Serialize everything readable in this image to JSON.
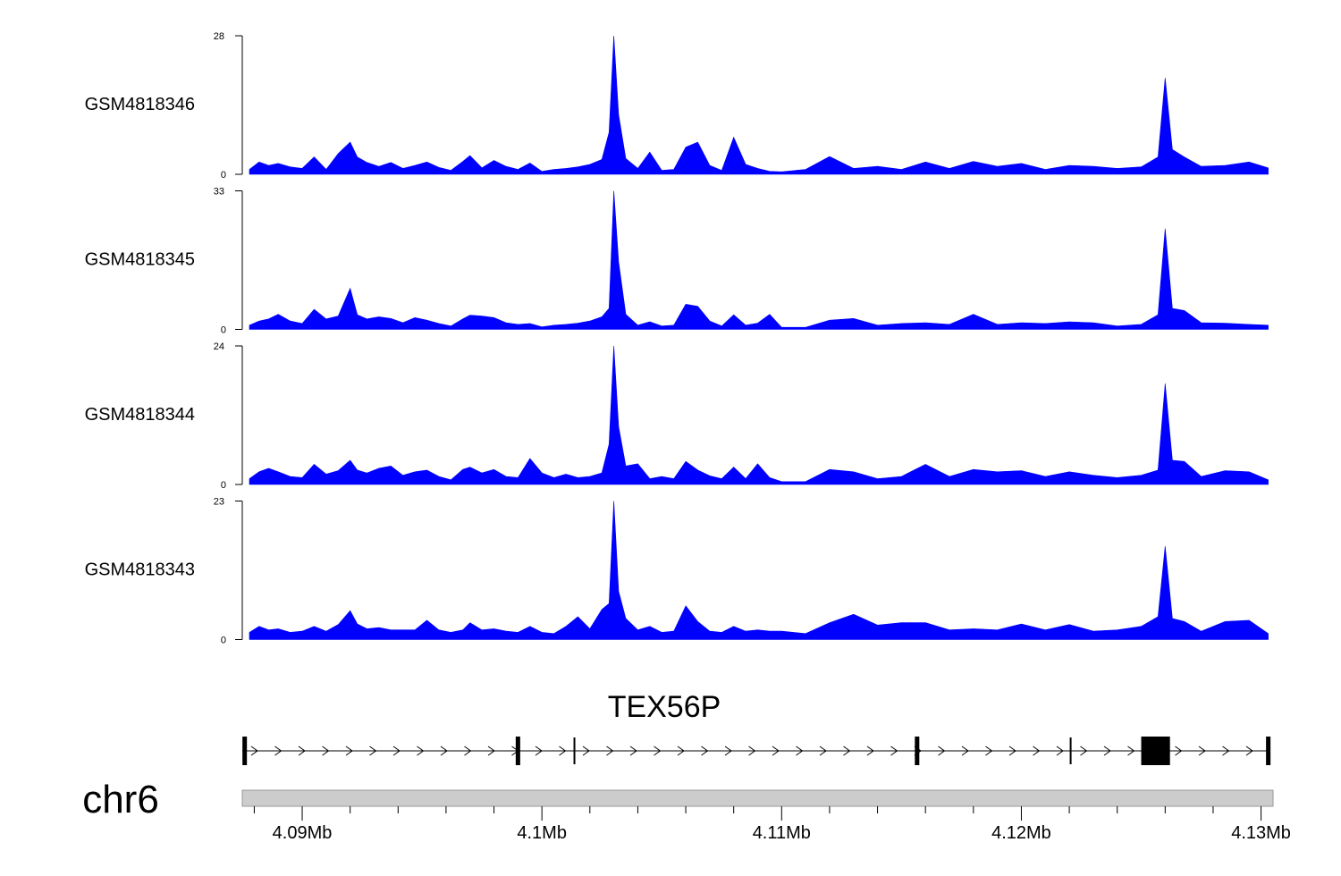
{
  "chart_data": {
    "type": "area",
    "chromosome": "chr6",
    "x_unit": "Mb",
    "xlim": [
      4.0875,
      4.1305
    ],
    "x_ticks": [
      4.09,
      4.1,
      4.11,
      4.12,
      4.13
    ],
    "x_tick_labels": [
      "4.09Mb",
      "4.1Mb",
      "4.11Mb",
      "4.12Mb",
      "4.13Mb"
    ],
    "fill_color": "#0000ff",
    "tracks": [
      {
        "name": "GSM4818346",
        "ymax": 28,
        "ymax_label": "28",
        "ymin_label": "0",
        "positions": [
          4.0878,
          4.0882,
          4.0886,
          4.089,
          4.0895,
          4.09,
          4.0905,
          4.091,
          4.0915,
          4.092,
          4.0923,
          4.0927,
          4.0932,
          4.0937,
          4.0942,
          4.0947,
          4.0952,
          4.0957,
          4.0962,
          4.0967,
          4.097,
          4.0975,
          4.098,
          4.0985,
          4.099,
          4.0995,
          4.1,
          4.1005,
          4.101,
          4.1015,
          4.102,
          4.1025,
          4.1028,
          4.103,
          4.1032,
          4.1035,
          4.104,
          4.1045,
          4.105,
          4.1055,
          4.106,
          4.1065,
          4.107,
          4.1075,
          4.108,
          4.1085,
          4.109,
          4.1095,
          4.11,
          4.111,
          4.112,
          4.113,
          4.114,
          4.115,
          4.116,
          4.117,
          4.118,
          4.119,
          4.12,
          4.121,
          4.122,
          4.123,
          4.124,
          4.125,
          4.1257,
          4.126,
          4.1263,
          4.1268,
          4.1275,
          4.1285,
          4.1295,
          4.1303
        ],
        "values": [
          1,
          2.5,
          1.8,
          2.2,
          1.5,
          1.2,
          3.5,
          1,
          4.2,
          6.5,
          3.5,
          2.4,
          1.6,
          2.4,
          1.2,
          1.8,
          2.5,
          1.4,
          0.8,
          2.6,
          3.8,
          1.3,
          2.8,
          1.6,
          1,
          2.3,
          0.6,
          1,
          1.2,
          1.5,
          2,
          3,
          8.5,
          28,
          12,
          3.2,
          1.2,
          4.5,
          0.8,
          1,
          5.5,
          6.5,
          1.8,
          0.8,
          7.5,
          2,
          1.2,
          0.6,
          0.5,
          1,
          3.6,
          1.2,
          1.6,
          1,
          2.5,
          1.2,
          2.6,
          1.6,
          2.2,
          1,
          1.8,
          1.6,
          1.2,
          1.5,
          3.5,
          19.5,
          5,
          3.5,
          1.6,
          1.8,
          2.5,
          1.3
        ]
      },
      {
        "name": "GSM4818345",
        "ymax": 33,
        "ymax_label": "33",
        "ymin_label": "0",
        "positions": [
          4.0878,
          4.0882,
          4.0886,
          4.089,
          4.0895,
          4.09,
          4.0905,
          4.091,
          4.0915,
          4.092,
          4.0923,
          4.0927,
          4.0932,
          4.0937,
          4.0942,
          4.0947,
          4.0952,
          4.0957,
          4.0962,
          4.0967,
          4.097,
          4.0975,
          4.098,
          4.0985,
          4.099,
          4.0995,
          4.1,
          4.1005,
          4.101,
          4.1015,
          4.102,
          4.1025,
          4.1028,
          4.103,
          4.1032,
          4.1035,
          4.104,
          4.1045,
          4.105,
          4.1055,
          4.106,
          4.1065,
          4.107,
          4.1075,
          4.108,
          4.1085,
          4.109,
          4.1095,
          4.11,
          4.111,
          4.112,
          4.113,
          4.114,
          4.115,
          4.116,
          4.117,
          4.118,
          4.119,
          4.12,
          4.121,
          4.122,
          4.123,
          4.124,
          4.125,
          4.1257,
          4.126,
          4.1263,
          4.1268,
          4.1275,
          4.1285,
          4.1295,
          4.1303
        ],
        "values": [
          1,
          2,
          2.5,
          3.6,
          2,
          1.4,
          4.8,
          2.5,
          3.2,
          9.8,
          3.5,
          2.5,
          3,
          2.6,
          1.6,
          2.8,
          2.2,
          1.4,
          0.8,
          2.5,
          3.4,
          3.2,
          2.8,
          1.6,
          1.2,
          1.4,
          0.6,
          1,
          1.2,
          1.5,
          2,
          3,
          5,
          33,
          16,
          3.6,
          1,
          1.8,
          0.8,
          1,
          6,
          5.5,
          2,
          0.8,
          3.5,
          1,
          1.5,
          3.6,
          0.5,
          0.5,
          2.2,
          2.6,
          1,
          1.4,
          1.6,
          1.2,
          3.6,
          1.2,
          1.6,
          1.4,
          1.8,
          1.6,
          0.8,
          1.2,
          3.5,
          24,
          5,
          4.5,
          1.6,
          1.5,
          1.2,
          1
        ]
      },
      {
        "name": "GSM4818344",
        "ymax": 24,
        "ymax_label": "24",
        "ymin_label": "0",
        "positions": [
          4.0878,
          4.0882,
          4.0886,
          4.089,
          4.0895,
          4.09,
          4.0905,
          4.091,
          4.0915,
          4.092,
          4.0923,
          4.0927,
          4.0932,
          4.0937,
          4.0942,
          4.0947,
          4.0952,
          4.0957,
          4.0962,
          4.0967,
          4.097,
          4.0975,
          4.098,
          4.0985,
          4.099,
          4.0995,
          4.1,
          4.1005,
          4.101,
          4.1015,
          4.102,
          4.1025,
          4.1028,
          4.103,
          4.1032,
          4.1035,
          4.104,
          4.1045,
          4.105,
          4.1055,
          4.106,
          4.1065,
          4.107,
          4.1075,
          4.108,
          4.1085,
          4.109,
          4.1095,
          4.11,
          4.111,
          4.112,
          4.113,
          4.114,
          4.115,
          4.116,
          4.117,
          4.118,
          4.119,
          4.12,
          4.121,
          4.122,
          4.123,
          4.124,
          4.125,
          4.1257,
          4.126,
          4.1263,
          4.1268,
          4.1275,
          4.1285,
          4.1295,
          4.1303
        ],
        "values": [
          1,
          2.2,
          2.8,
          2.2,
          1.4,
          1.2,
          3.5,
          1.8,
          2.4,
          4.2,
          2.5,
          2,
          2.8,
          3.2,
          1.6,
          2.2,
          2.5,
          1.4,
          0.8,
          2.6,
          3,
          2,
          2.6,
          1.4,
          1.2,
          4.5,
          2,
          1.2,
          1.8,
          1.2,
          1.4,
          2,
          7,
          24,
          10,
          3.2,
          3.6,
          1,
          1.4,
          1,
          4,
          2.5,
          1.5,
          1,
          3,
          1,
          3.6,
          1.2,
          0.5,
          0.5,
          2.6,
          2.2,
          1,
          1.4,
          3.5,
          1.4,
          2.6,
          2.2,
          2.4,
          1.4,
          2.2,
          1.6,
          1.2,
          1.6,
          2.5,
          17.5,
          4.2,
          4,
          1.4,
          2.4,
          2.2,
          0.8
        ]
      },
      {
        "name": "GSM4818343",
        "ymax": 23,
        "ymax_label": "23",
        "ymin_label": "0",
        "positions": [
          4.0878,
          4.0882,
          4.0886,
          4.089,
          4.0895,
          4.09,
          4.0905,
          4.091,
          4.0915,
          4.092,
          4.0923,
          4.0927,
          4.0932,
          4.0937,
          4.0942,
          4.0947,
          4.0952,
          4.0957,
          4.0962,
          4.0967,
          4.097,
          4.0975,
          4.098,
          4.0985,
          4.099,
          4.0995,
          4.1,
          4.1005,
          4.101,
          4.1015,
          4.102,
          4.1025,
          4.1028,
          4.103,
          4.1032,
          4.1035,
          4.104,
          4.1045,
          4.105,
          4.1055,
          4.106,
          4.1065,
          4.107,
          4.1075,
          4.108,
          4.1085,
          4.109,
          4.1095,
          4.11,
          4.111,
          4.112,
          4.113,
          4.114,
          4.115,
          4.116,
          4.117,
          4.118,
          4.119,
          4.12,
          4.121,
          4.122,
          4.123,
          4.124,
          4.125,
          4.1257,
          4.126,
          4.1263,
          4.1268,
          4.1275,
          4.1285,
          4.1295,
          4.1303
        ],
        "values": [
          1.2,
          2.2,
          1.6,
          1.8,
          1.2,
          1.4,
          2.2,
          1.4,
          2.5,
          4.8,
          2.6,
          1.8,
          2,
          1.6,
          1.6,
          1.6,
          3.2,
          1.6,
          1.2,
          1.6,
          2.8,
          1.6,
          1.8,
          1.4,
          1.2,
          2.2,
          1.2,
          1,
          2.2,
          3.8,
          1.8,
          5,
          6,
          23,
          8,
          3.5,
          1.6,
          2.2,
          1.2,
          1.4,
          5.6,
          3,
          1.4,
          1.2,
          2.2,
          1.4,
          1.6,
          1.4,
          1.4,
          1,
          2.8,
          4.2,
          2.4,
          2.8,
          2.8,
          1.6,
          1.8,
          1.6,
          2.6,
          1.6,
          2.5,
          1.4,
          1.6,
          2.2,
          3.8,
          15.5,
          3.5,
          3,
          1.4,
          3,
          3.2,
          1
        ]
      }
    ],
    "gene_track": {
      "name": "TEX56P",
      "strand": "+",
      "start": 4.0875,
      "end": 4.1303,
      "exons": [
        {
          "start": 4.0875,
          "end": 4.0877
        },
        {
          "start": 4.0989,
          "end": 4.0991
        },
        {
          "start": 4.1013,
          "end": 4.1014
        },
        {
          "start": 4.1155,
          "end": 4.1158
        },
        {
          "start": 4.122,
          "end": 4.1221
        },
        {
          "start": 4.125,
          "end": 4.1262
        },
        {
          "start": 4.1302,
          "end": 4.1304
        }
      ],
      "exon_heights": [
        "tall",
        "tall",
        "short",
        "tall",
        "short",
        "block",
        "tall"
      ]
    },
    "ideogram_color": "#cccccc"
  }
}
